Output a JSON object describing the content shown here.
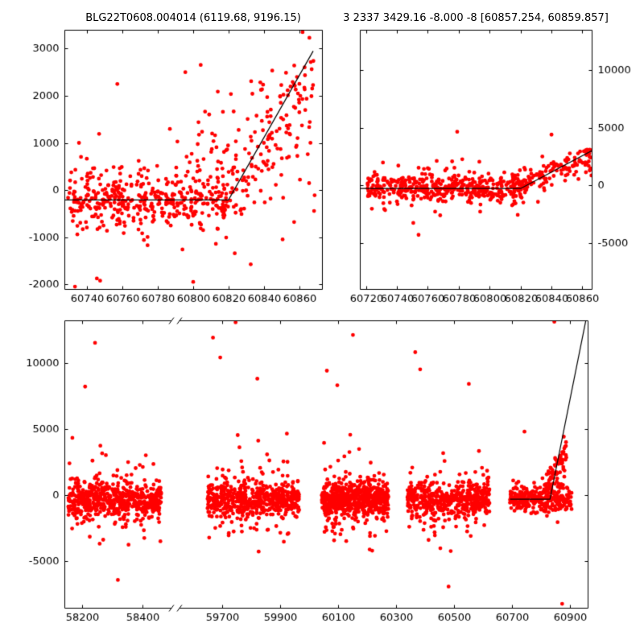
{
  "figure": {
    "background": "#ffffff",
    "marker_color": "#ff0000",
    "line_color": "#000000",
    "text_color": "#000000",
    "titles": [
      {
        "text": "BLG22T0608.004014 (6119.68, 9196.15)"
      },
      {
        "text": "3 2337 3429.16 -8.000 -8 [60857.254, 60859.857]"
      }
    ]
  },
  "chart_data": [
    {
      "type": "scatter",
      "name": "top-left-zoom-plot",
      "title": "BLG22T0608.004014 (6119.68, 9196.15)",
      "frame": [
        80,
        37,
        320,
        322
      ],
      "xlim": [
        60727,
        60873
      ],
      "ylim": [
        -2100,
        3400
      ],
      "x_ticks": [
        60740,
        60760,
        60780,
        60800,
        60820,
        60840,
        60860
      ],
      "y_ticks": [
        -2000,
        -1000,
        0,
        1000,
        2000,
        3000
      ],
      "y_side": "left",
      "grid": false,
      "clusters": [
        {
          "seed": 101,
          "n": 320,
          "x": [
            60729,
            60821
          ],
          "y_mean": -180,
          "y_sigma": 280
        },
        {
          "seed": 102,
          "n": 110,
          "x": [
            60729,
            60821
          ],
          "y_mean": -250,
          "y_sigma": 750
        },
        {
          "seed": 103,
          "n": 130,
          "x": [
            60818,
            60869
          ],
          "y_trend": [
            -100,
            2500
          ],
          "y_sigma": 650
        },
        {
          "seed": 104,
          "n": 60,
          "x": [
            60795,
            60869
          ],
          "y_mean": 900,
          "y_sigma": 900
        }
      ],
      "outliers": [
        [
          60733,
          -2050
        ],
        [
          60757,
          2250
        ],
        [
          60800,
          -1950
        ],
        [
          60862,
          3350
        ]
      ],
      "model_line": [
        [
          60727,
          -210
        ],
        [
          60820,
          -210
        ],
        [
          60868,
          2950
        ]
      ]
    },
    {
      "type": "scatter",
      "name": "top-right-zoom-plot",
      "title": "3 2337 3429.16 -8.000 -8 [60857.254, 60859.857]",
      "frame": [
        447,
        37,
        288,
        322
      ],
      "xlim": [
        60716,
        60866
      ],
      "ylim": [
        -9000,
        13500
      ],
      "x_ticks": [
        60720,
        60740,
        60760,
        60780,
        60800,
        60820,
        60840,
        60860
      ],
      "y_ticks": [
        -5000,
        0,
        5000,
        10000
      ],
      "y_side": "right",
      "grid": false,
      "clusters": [
        {
          "seed": 201,
          "n": 380,
          "x": [
            60721,
            60821
          ],
          "y_mean": -250,
          "y_sigma": 550
        },
        {
          "seed": 202,
          "n": 80,
          "x": [
            60721,
            60821
          ],
          "y_mean": -300,
          "y_sigma": 1300
        },
        {
          "seed": 203,
          "n": 150,
          "x": [
            60816,
            60866
          ],
          "y_trend": [
            -100,
            2300
          ],
          "y_sigma": 650
        }
      ],
      "outliers": [
        [
          60779,
          4650
        ],
        [
          60754,
          -4300
        ],
        [
          60840,
          4400
        ]
      ],
      "model_line": [
        [
          60716,
          -280
        ],
        [
          60820,
          -280
        ],
        [
          60866,
          3000
        ]
      ]
    },
    {
      "type": "scatter-broken-x",
      "name": "full-lightcurve-plot",
      "frame": [
        80,
        398,
        650,
        357
      ],
      "segments": [
        {
          "xlim": [
            58140,
            58495
          ],
          "x_ticks": [
            58200,
            58400
          ],
          "frac": 0.207
        },
        {
          "xlim": [
            59550,
            60960
          ],
          "x_ticks": [
            59700,
            59900,
            60100,
            60300,
            60500,
            60700,
            60900
          ],
          "frac": 0.793
        }
      ],
      "ylim": [
        -8500,
        13200
      ],
      "y_ticks": [
        -5000,
        0,
        5000,
        10000
      ],
      "y_side": "left",
      "grid": false,
      "clusters": [
        {
          "seed": 301,
          "n": 520,
          "x": [
            58152,
            58462
          ],
          "y_mean": -350,
          "y_sigma": 650
        },
        {
          "seed": 302,
          "n": 90,
          "x": [
            58152,
            58462
          ],
          "y_mean": -300,
          "y_sigma": 1800
        },
        {
          "seed": 303,
          "n": 520,
          "x": [
            59648,
            59965
          ],
          "y_mean": -350,
          "y_sigma": 650
        },
        {
          "seed": 304,
          "n": 90,
          "x": [
            59648,
            59965
          ],
          "y_mean": -300,
          "y_sigma": 1800
        },
        {
          "seed": 305,
          "n": 560,
          "x": [
            60042,
            60272
          ],
          "y_mean": -300,
          "y_sigma": 650
        },
        {
          "seed": 306,
          "n": 90,
          "x": [
            60042,
            60272
          ],
          "y_mean": -250,
          "y_sigma": 1700
        },
        {
          "seed": 307,
          "n": 420,
          "x": [
            60338,
            60622
          ],
          "y_mean": -350,
          "y_sigma": 650
        },
        {
          "seed": 308,
          "n": 80,
          "x": [
            60338,
            60622
          ],
          "y_mean": -300,
          "y_sigma": 1800
        },
        {
          "seed": 309,
          "n": 300,
          "x": [
            60692,
            60905
          ],
          "y_mean": -300,
          "y_sigma": 550
        },
        {
          "seed": 310,
          "n": 90,
          "x": [
            60810,
            60890
          ],
          "y_trend": [
            -100,
            3600
          ],
          "y_sigma": 800
        }
      ],
      "outliers": [
        [
          58242,
          11500
        ],
        [
          58209,
          8200
        ],
        [
          58318,
          -6400
        ],
        [
          59667,
          11900
        ],
        [
          59692,
          10400
        ],
        [
          59820,
          8800
        ],
        [
          59745,
          13050
        ],
        [
          60060,
          9400
        ],
        [
          60096,
          8300
        ],
        [
          60150,
          12100
        ],
        [
          60365,
          10800
        ],
        [
          60382,
          9500
        ],
        [
          60480,
          -6900
        ],
        [
          60550,
          8400
        ],
        [
          60845,
          13100
        ],
        [
          60872,
          -8200
        ],
        [
          60742,
          4800
        ]
      ],
      "model_line": [
        [
          60692,
          -300
        ],
        [
          60830,
          -300
        ],
        [
          60963,
          14200
        ]
      ]
    }
  ]
}
